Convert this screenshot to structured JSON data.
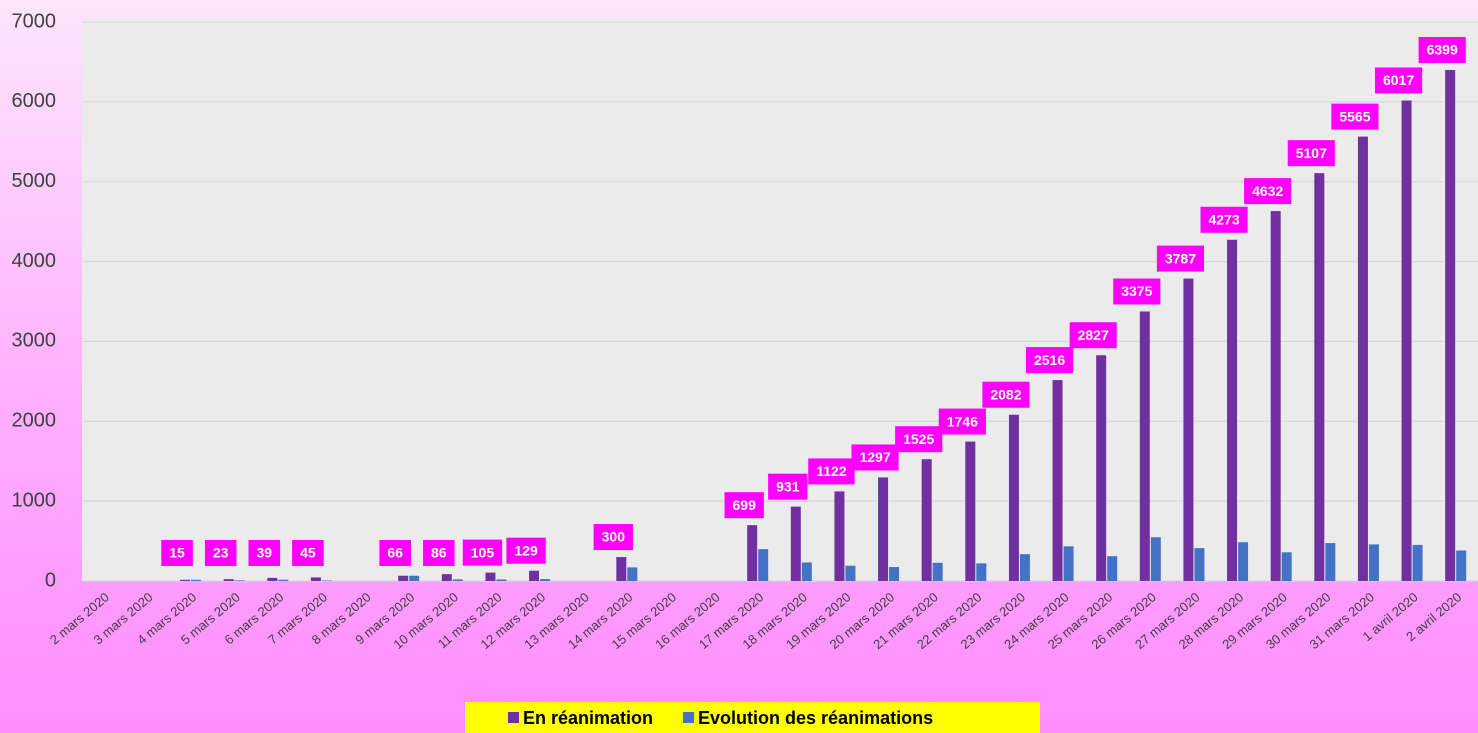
{
  "chart_data": {
    "type": "bar",
    "categories": [
      "2 mars 2020",
      "3 mars 2020",
      "4 mars 2020",
      "5 mars 2020",
      "6 mars 2020",
      "7 mars 2020",
      "8 mars 2020",
      "9 mars 2020",
      "10 mars 2020",
      "11 mars 2020",
      "12 mars 2020",
      "13 mars 2020",
      "14 mars 2020",
      "15 mars 2020",
      "16 mars 2020",
      "17 mars 2020",
      "18 mars 2020",
      "19 mars 2020",
      "20 mars 2020",
      "21 mars 2020",
      "22 mars 2020",
      "23 mars 2020",
      "24 mars 2020",
      "25 mars 2020",
      "26 mars 2020",
      "27 mars 2020",
      "28 mars 2020",
      "29 mars 2020",
      "30 mars 2020",
      "31 mars 2020",
      "1 avril 2020",
      "2 avril 2020"
    ],
    "series": [
      {
        "name": "En réanimation",
        "color": "#7030a0",
        "labels": true,
        "values": [
          null,
          null,
          15,
          23,
          39,
          45,
          null,
          66,
          86,
          105,
          129,
          null,
          300,
          null,
          null,
          699,
          931,
          1122,
          1297,
          1525,
          1746,
          2082,
          2516,
          2827,
          3375,
          3787,
          4273,
          4632,
          5107,
          5565,
          6017,
          6399
        ]
      },
      {
        "name": "Evolution des réanimations",
        "color": "#4472c4",
        "labels": false,
        "values": [
          null,
          null,
          15,
          8,
          16,
          6,
          null,
          66,
          20,
          19,
          24,
          null,
          171,
          null,
          null,
          399,
          232,
          191,
          175,
          228,
          221,
          336,
          434,
          311,
          548,
          412,
          486,
          359,
          475,
          458,
          452,
          382
        ]
      }
    ],
    "ylim": [
      0,
      7000
    ],
    "yticks": [
      0,
      1000,
      2000,
      3000,
      4000,
      5000,
      6000,
      7000
    ],
    "grid": true,
    "legend": "bottom"
  }
}
